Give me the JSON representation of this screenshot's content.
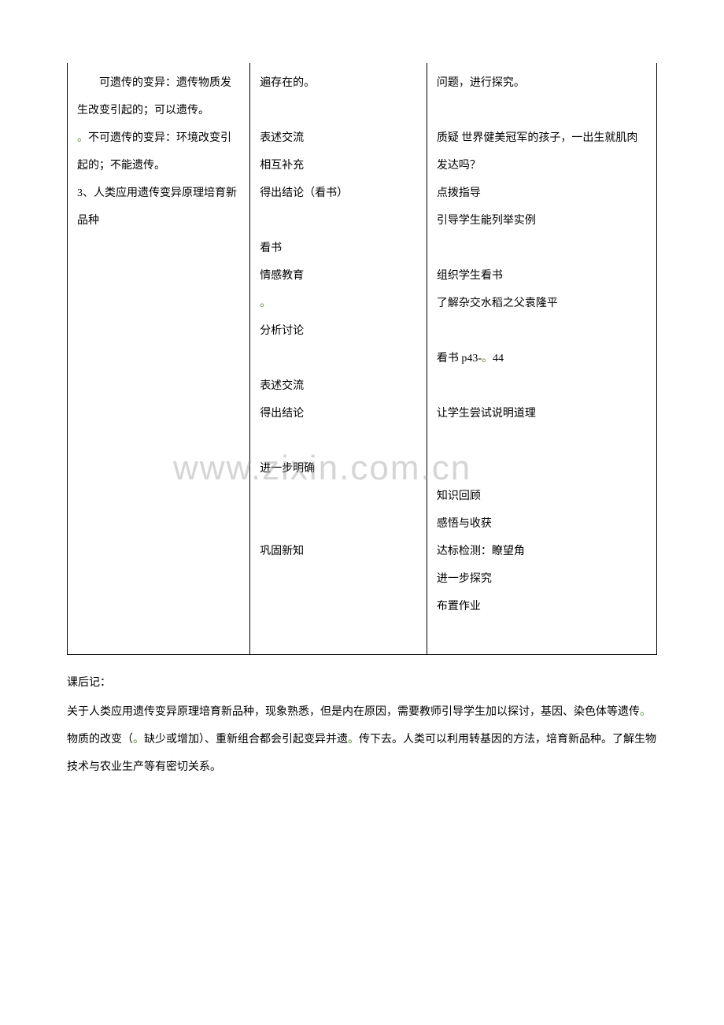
{
  "watermark": "www.zixin.com.cn",
  "table": {
    "col1": {
      "line1": "",
      "line2": "　可遗传的变异：遗传物质发生改变引起的；可以遗传。",
      "line3_prefix_dot": "。",
      "line3": "不可遗传的变异：环境改变引起的；不能遗传。",
      "line4": "",
      "line5": "3、人类应用遗传变异原理培育新品种"
    },
    "col2": {
      "line1": "遍存在的。",
      "line2": "",
      "line3": "表述交流",
      "line4": "相互补充",
      "line5": "得出结论（看书）",
      "line6": "",
      "line7": "看书",
      "line8": "情感教育",
      "dot": "。",
      "line9": "分析讨论",
      "line10": "",
      "line11": "表述交流",
      "line12": "得出结论",
      "line13": "",
      "line14": "进一步明确",
      "line15": "",
      "line16": "",
      "line17": "巩固新知",
      "line18": ""
    },
    "col3": {
      "line1": "问题，进行探究。",
      "line2": "",
      "line3": "质疑 世界健美冠军的孩子，一出生就肌肉发达吗？",
      "line4": "点拨指导",
      "line5": "引导学生能列举实例",
      "line6": "",
      "line7": "组织学生看书",
      "line8": "了解杂交水稻之父袁隆平",
      "line9": "",
      "line10_prefix": "看书 p43-",
      "line10_dot": "。",
      "line10_suffix": "44",
      "line11": "",
      "line12": "让学生尝试说明道理",
      "line13": "",
      "line14": "",
      "line15": "知识回顾",
      "line16": "感悟与收获",
      "line17": "达标检测：瞭望角",
      "line18": "进一步探究",
      "line19": "布置作业",
      "line20": ""
    }
  },
  "afternote": {
    "p1": "课后记：",
    "p2_a": "关于人类应用遗传变异原理培育新品种，现象熟悉，但是内在原因，需要教师引导学生加以探讨，基因、染色体等遗传",
    "dot1": "。",
    "p2_b": "物质的改变（",
    "dot2": "。",
    "p2_c": "缺少或增加）、重新组合都会引起变异并遗",
    "dot3": "。",
    "p2_d": "传下去。人类可以利用转基因的方法，培育新品种。了解生物技术与农业生产等有密切关系。"
  }
}
